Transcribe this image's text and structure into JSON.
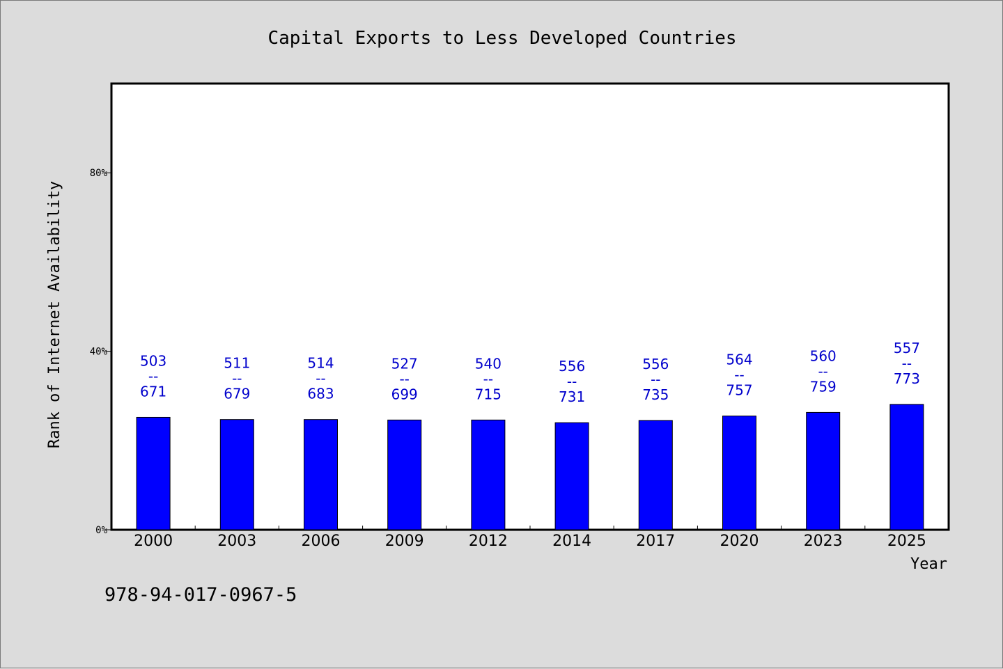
{
  "chart_data": {
    "type": "bar",
    "title": "Capital Exports to Less Developed Countries",
    "xlabel": "Year",
    "ylabel": "Rank of Internet Availability",
    "categories": [
      "2000",
      "2003",
      "2006",
      "2009",
      "2012",
      "2014",
      "2017",
      "2020",
      "2023",
      "2025"
    ],
    "values": [
      25.2,
      24.7,
      24.7,
      24.6,
      24.6,
      24.0,
      24.5,
      25.5,
      26.3,
      28.1
    ],
    "ylim": [
      0,
      100
    ],
    "yticks": [
      0,
      40,
      80
    ],
    "ytick_labels": [
      "0%",
      "40%",
      "80%"
    ],
    "data_labels": [
      [
        "503",
        "--",
        "671"
      ],
      [
        "511",
        "--",
        "679"
      ],
      [
        "514",
        "--",
        "683"
      ],
      [
        "527",
        "--",
        "699"
      ],
      [
        "540",
        "--",
        "715"
      ],
      [
        "556",
        "--",
        "731"
      ],
      [
        "556",
        "--",
        "735"
      ],
      [
        "564",
        "--",
        "757"
      ],
      [
        "560",
        "--",
        "759"
      ],
      [
        "557",
        "--",
        "773"
      ]
    ],
    "bar_color": "#0000ff",
    "label_color": "#0000cc",
    "grid": false,
    "legend": "none"
  },
  "footer": {
    "code": "978-94-017-0967-5"
  }
}
